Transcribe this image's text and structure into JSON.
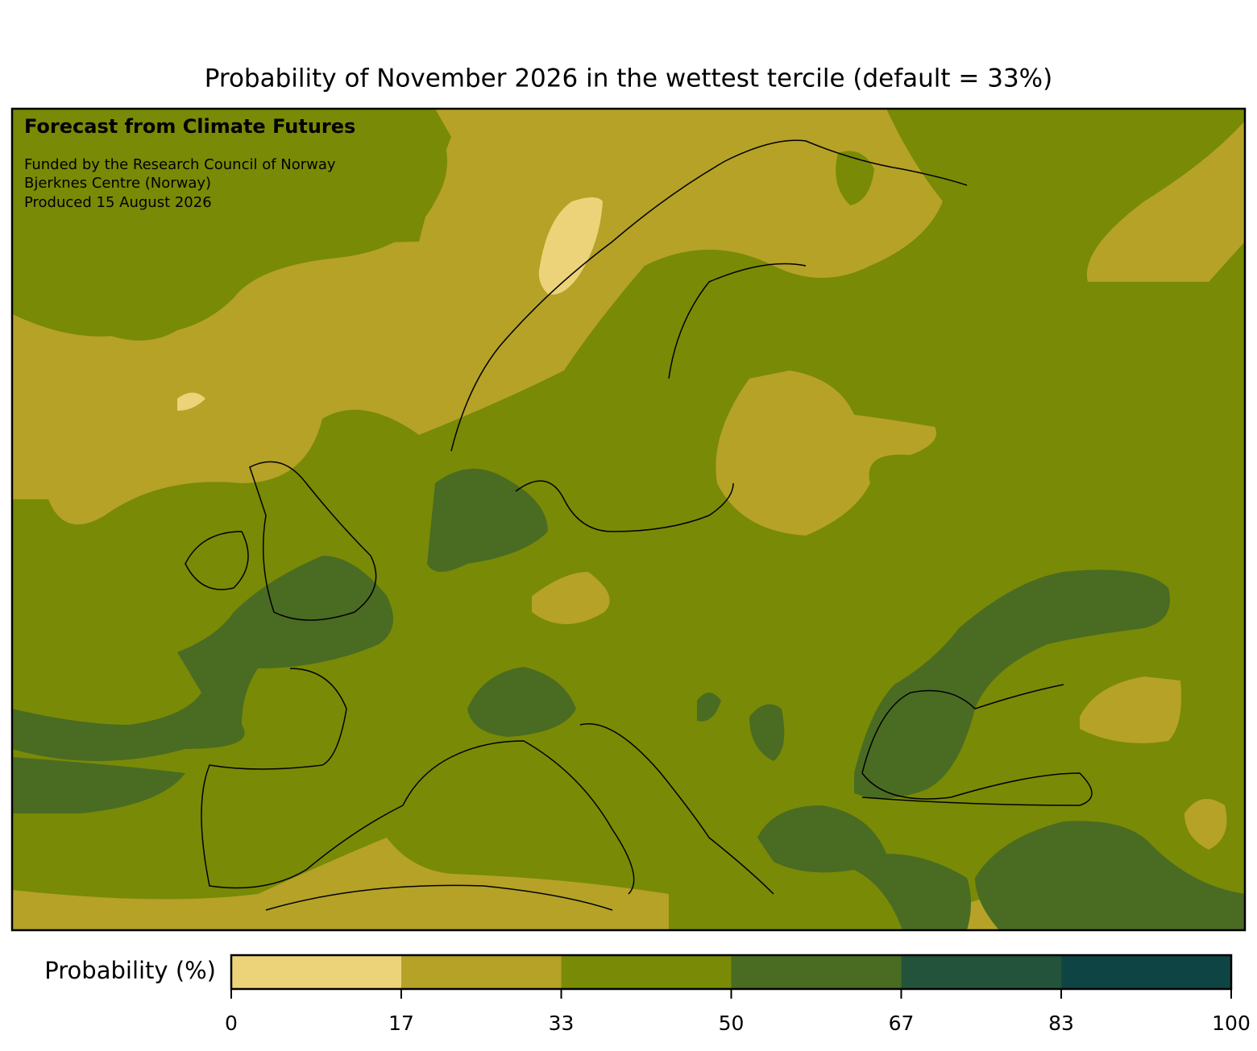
{
  "title": "Probability of November 2026 in the wettest tercile (default = 33%)",
  "annotations": {
    "heading": "Forecast from Climate Futures",
    "lines": [
      "Funded by the Research Council of Norway",
      "Bjerknes Centre (Norway)",
      "Produced 15 August 2026"
    ]
  },
  "colorbar": {
    "label": "Probability (%)",
    "ticks": [
      0,
      17,
      33,
      50,
      67,
      83,
      100
    ],
    "colors": [
      "#ecd379",
      "#b5a227",
      "#798a06",
      "#4a6b22",
      "#23533a",
      "#0f4444"
    ]
  }
}
